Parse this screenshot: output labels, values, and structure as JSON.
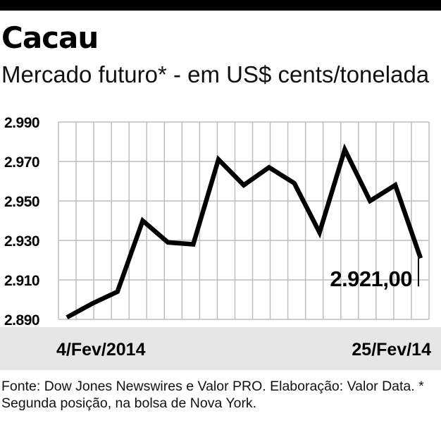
{
  "header": {
    "title": "Cacau",
    "subtitle": "Mercado futuro* - em US$ cents/tonelada"
  },
  "footer": {
    "source": "Fonte: Dow Jones Newswires e Valor PRO. Elaboração: Valor Data. * Segunda posição, na bolsa de Nova York."
  },
  "colors": {
    "line": "#000000",
    "grid": "#bdbdbd",
    "band": "#e6e6e6"
  },
  "chart_data": {
    "type": "line",
    "title": "Cacau",
    "subtitle": "Mercado futuro* - em US$ cents/tonelada",
    "ylim": [
      2890,
      2990
    ],
    "yticks": [
      2890,
      2910,
      2930,
      2950,
      2970,
      2990
    ],
    "ytick_labels": [
      "2.890",
      "2.910",
      "2.930",
      "2.950",
      "2.970",
      "2.990"
    ],
    "x_start_label": "4/Fev/2014",
    "x_end_label": "25/Fev/14",
    "grid": true,
    "series": [
      {
        "values": [
          2891,
          2898,
          2904,
          2940,
          2929,
          2928,
          2971,
          2958,
          2967,
          2959,
          2934,
          2976,
          2950,
          2958,
          2921
        ]
      }
    ],
    "last_value_label": "2.921,00"
  }
}
